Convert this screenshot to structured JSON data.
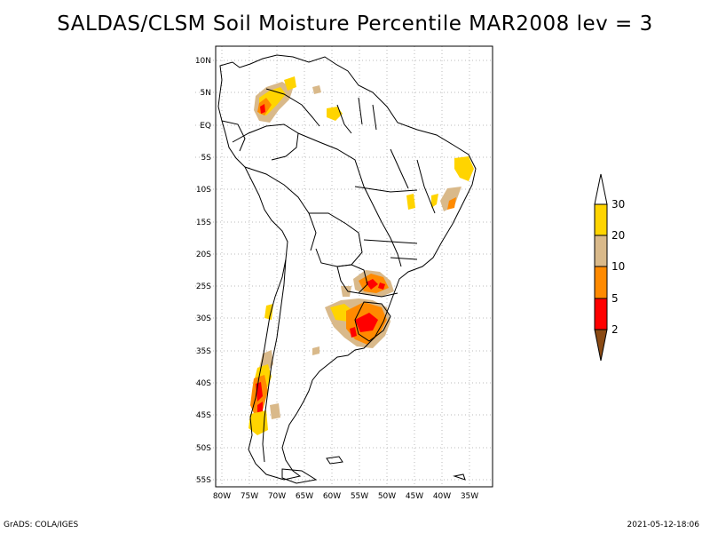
{
  "title": "SALDAS/CLSM Soil Moisture Percentile MAR2008 lev = 3",
  "lat_labels": [
    "10N",
    "5N",
    "EQ",
    "5S",
    "10S",
    "15S",
    "20S",
    "25S",
    "30S",
    "35S",
    "40S",
    "45S",
    "50S",
    "55S"
  ],
  "lon_labels": [
    "80W",
    "75W",
    "70W",
    "65W",
    "60W",
    "55W",
    "50W",
    "45W",
    "40W",
    "35W"
  ],
  "colorbar": {
    "labels": [
      "30",
      "20",
      "10",
      "5",
      "2"
    ],
    "colors": {
      "above_30": "#ffffff",
      "c20_30": "#ffd400",
      "c10_20": "#d9b98a",
      "c5_10": "#ff8a00",
      "c2_5": "#ff0000",
      "below_2": "#8a4a14"
    }
  },
  "footer": {
    "left": "GrADS: COLA/IGES",
    "right": "2021-05-12-18:06"
  }
}
